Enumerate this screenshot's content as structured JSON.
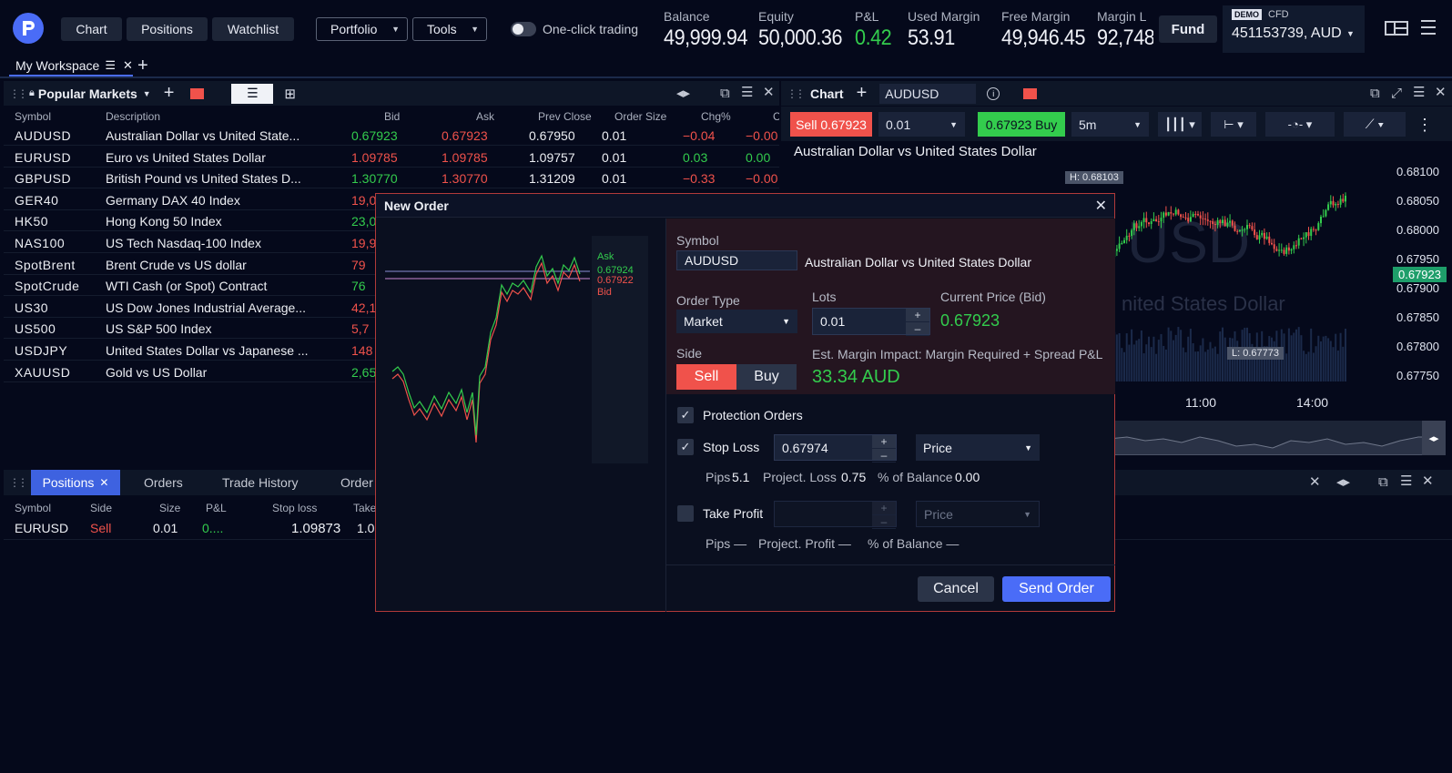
{
  "nav": {
    "chart": "Chart",
    "positions": "Positions",
    "watchlist": "Watchlist",
    "portfolio": "Portfolio",
    "tools": "Tools",
    "one_click": "One-click trading"
  },
  "account": {
    "balance_label": "Balance",
    "balance": "49,999.94",
    "equity_label": "Equity",
    "equity": "50,000.36",
    "pl_label": "P&L",
    "pl": "0.42",
    "used_margin_label": "Used Margin",
    "used_margin": "53.91",
    "free_margin_label": "Free Margin",
    "free_margin": "49,946.45",
    "margin_level_label": "Margin L",
    "margin_level": "92,748",
    "fund": "Fund",
    "demo": "DEMO",
    "cfd": "CFD",
    "account_id": "451153739, AUD"
  },
  "workspace": {
    "tab": "My Workspace"
  },
  "markets": {
    "title": "Popular Markets",
    "columns": {
      "symbol": "Symbol",
      "description": "Description",
      "bid": "Bid",
      "ask": "Ask",
      "prev": "Prev Close",
      "size": "Order Size",
      "chg": "Chg%",
      "c": "C"
    },
    "rows": [
      {
        "symbol": "AUDUSD",
        "desc": "Australian Dollar vs United State...",
        "bid": "0.67923",
        "ask": "0.67923",
        "prev": "0.67950",
        "size": "0.01",
        "chg": "−0.04",
        "c": "−0.00",
        "dir": "up"
      },
      {
        "symbol": "EURUSD",
        "desc": "Euro vs United States Dollar",
        "bid": "1.09785",
        "ask": "1.09785",
        "prev": "1.09757",
        "size": "0.01",
        "chg": "0.03",
        "c": "0.00",
        "dir": "down"
      },
      {
        "symbol": "GBPUSD",
        "desc": "British Pound vs United States D...",
        "bid": "1.30770",
        "ask": "1.30770",
        "prev": "1.31209",
        "size": "0.01",
        "chg": "−0.33",
        "c": "−0.00",
        "dir": "up"
      },
      {
        "symbol": "GER40",
        "desc": "Germany DAX 40 Index",
        "bid": "19,0",
        "dir": "down"
      },
      {
        "symbol": "HK50",
        "desc": "Hong Kong 50 Index",
        "bid": "23,0",
        "dir": "up"
      },
      {
        "symbol": "NAS100",
        "desc": "US Tech Nasdaq-100 Index",
        "bid": "19,9",
        "dir": "down"
      },
      {
        "symbol": "SpotBrent",
        "desc": "Brent Crude vs US dollar",
        "bid": "79",
        "dir": "down"
      },
      {
        "symbol": "SpotCrude",
        "desc": "WTI Cash (or Spot) Contract",
        "bid": "76",
        "dir": "up"
      },
      {
        "symbol": "US30",
        "desc": "US Dow Jones Industrial Average...",
        "bid": "42,1",
        "dir": "down"
      },
      {
        "symbol": "US500",
        "desc": "US S&P 500 Index",
        "bid": "5,7",
        "dir": "down"
      },
      {
        "symbol": "USDJPY",
        "desc": "United States Dollar vs Japanese ...",
        "bid": "148",
        "dir": "down"
      },
      {
        "symbol": "XAUUSD",
        "desc": "Gold vs US Dollar",
        "bid": "2,65",
        "dir": "up"
      }
    ]
  },
  "chart": {
    "title": "Chart",
    "symbol": "AUDUSD",
    "sell": "Sell 0.67923",
    "buy": "0.67923 Buy",
    "lots": "0.01",
    "interval": "5m",
    "instrument": "Australian Dollar vs United States Dollar",
    "watermark": "USD",
    "watermark2": "nited States Dollar",
    "high": "H: 0.68103",
    "low": "L: 0.67773",
    "last": "0.67923",
    "prices": [
      "0.68100",
      "0.68050",
      "0.68000",
      "0.67950",
      "0.67900",
      "0.67850",
      "0.67800",
      "0.67750"
    ],
    "times": [
      "11:00",
      "14:00"
    ]
  },
  "positions": {
    "tabs": [
      "Positions",
      "Orders",
      "Trade History",
      "Order H"
    ],
    "columns": {
      "symbol": "Symbol",
      "side": "Side",
      "size": "Size",
      "pl": "P&L",
      "sl": "Stop loss",
      "take": "Take"
    },
    "row": {
      "symbol": "EURUSD",
      "side": "Sell",
      "size": "0.01",
      "pl": "0....",
      "sl": "1.09873",
      "take": "1.0"
    }
  },
  "order": {
    "title": "New Order",
    "mini": {
      "ask": "Ask",
      "ask_price": "0.67924",
      "bid_price": "0.67922",
      "bid": "Bid"
    },
    "symbol_label": "Symbol",
    "symbol": "AUDUSD",
    "symbol_desc": "Australian Dollar vs United States Dollar",
    "order_type_label": "Order Type",
    "order_type": "Market",
    "lots_label": "Lots",
    "lots": "0.01",
    "price_label": "Current Price (Bid)",
    "price": "0.67923",
    "side_label": "Side",
    "sell": "Sell",
    "buy": "Buy",
    "margin_label": "Est. Margin Impact: Margin Required + Spread P&L",
    "margin": "33.34 AUD",
    "protection": "Protection Orders",
    "stop_loss": "Stop Loss",
    "sl_value": "0.67974",
    "sl_type": "Price",
    "pips_label": "Pips",
    "pips": "5.1",
    "proj_loss_label": "Project. Loss",
    "proj_loss": "0.75",
    "pct_label": "% of Balance",
    "pct": "0.00",
    "take_profit": "Take Profit",
    "tp_type": "Price",
    "tp_pips": "Pips —",
    "tp_profit": "Project. Profit —",
    "tp_pct": "% of Balance —",
    "cancel": "Cancel",
    "send": "Send Order"
  },
  "colors": {
    "accent": "#4a6cf7",
    "green": "#33cc4d",
    "red": "#f0524b",
    "bg": "#05091b"
  }
}
